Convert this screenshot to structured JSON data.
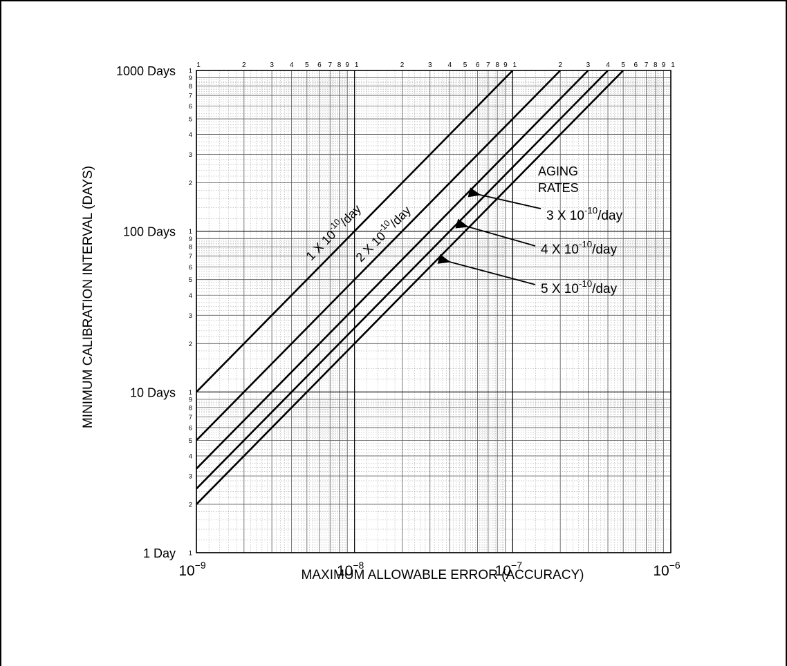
{
  "chart_data": {
    "type": "line",
    "scale": "log-log",
    "xlabel": "MAXIMUM ALLOWABLE ERROR (ACCURACY)",
    "ylabel": "MINIMUM CALIBRATION INTERVAL (DAYS)",
    "xlim": [
      1e-09,
      1e-06
    ],
    "ylim": [
      1,
      1000
    ],
    "grid": true,
    "x_ticks": [
      {
        "value": 1e-09,
        "base": "10",
        "exp": "−9"
      },
      {
        "value": 1e-08,
        "base": "10",
        "exp": "−8"
      },
      {
        "value": 1e-07,
        "base": "10",
        "exp": "−7"
      },
      {
        "value": 1e-06,
        "base": "10",
        "exp": "−6"
      }
    ],
    "y_ticks": [
      {
        "value": 1,
        "label": "1 Day"
      },
      {
        "value": 10,
        "label": "10 Days"
      },
      {
        "value": 100,
        "label": "100 Days"
      },
      {
        "value": 1000,
        "label": "1000 Days"
      }
    ],
    "top_cycle_labels": [
      "1",
      "2",
      "3",
      "4",
      "5",
      "6",
      "7",
      "8",
      "9",
      "1",
      "2",
      "3",
      "4",
      "5",
      "6",
      "7",
      "8",
      "9",
      "1",
      "2",
      "3",
      "4",
      "5",
      "6",
      "7",
      "8",
      "9",
      "1"
    ],
    "left_cycle_labels": [
      "1",
      "2",
      "3",
      "4",
      "5",
      "6",
      "7",
      "8",
      "9",
      "1",
      "2",
      "3",
      "4",
      "5",
      "6",
      "7",
      "8",
      "9",
      "1",
      "2",
      "3",
      "4",
      "5",
      "6",
      "7",
      "8",
      "9",
      "1"
    ],
    "legend_title": [
      "AGING",
      "RATES"
    ],
    "series": [
      {
        "name": "1 X 10-10 /day",
        "coef": "1",
        "exp": "-10",
        "suffix": "/day",
        "rate": 1e-10,
        "x": [
          1e-09,
          1e-07
        ],
        "y": [
          10,
          1000
        ]
      },
      {
        "name": "2 X 10-10 /day",
        "coef": "2",
        "exp": "-10",
        "suffix": "/day",
        "rate": 2e-10,
        "x": [
          1e-09,
          2e-07
        ],
        "y": [
          5,
          1000
        ]
      },
      {
        "name": "3 X 10-10/day",
        "coef": "3",
        "exp": "-10",
        "suffix": "/day",
        "rate": 3e-10,
        "x": [
          1e-09,
          3e-07
        ],
        "y": [
          3.33,
          1000
        ]
      },
      {
        "name": "4 X 10-10/day",
        "coef": "4",
        "exp": "-10",
        "suffix": "/day",
        "rate": 4e-10,
        "x": [
          1e-09,
          4e-07
        ],
        "y": [
          2.5,
          1000
        ]
      },
      {
        "name": "5 X10-10/day",
        "coef": "5",
        "exp": "-10",
        "suffix": "/day",
        "rate": 5e-10,
        "x": [
          1e-09,
          5e-07
        ],
        "y": [
          2,
          1000
        ]
      }
    ]
  }
}
